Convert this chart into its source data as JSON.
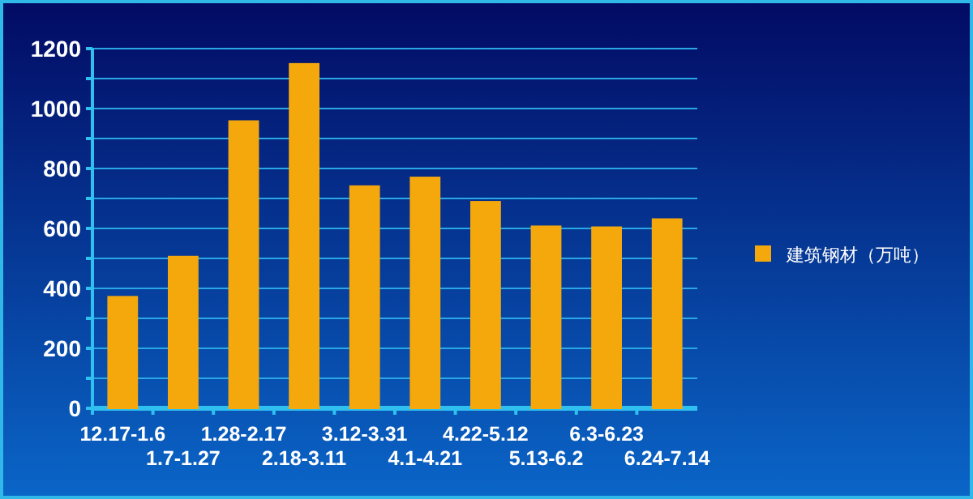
{
  "chart_data": {
    "type": "bar",
    "categories": [
      "12.17-1.6",
      "1.7-1.27",
      "1.28-2.17",
      "2.18-3.11",
      "3.12-3.31",
      "4.1-4.21",
      "4.22-5.12",
      "5.13-6.2",
      "6.3-6.23",
      "6.24-7.14"
    ],
    "series": [
      {
        "name": "建筑钢材（万吨）",
        "color": "#f5a80c",
        "values": [
          372,
          506,
          958,
          1149,
          741,
          770,
          689,
          607,
          604,
          631
        ]
      }
    ],
    "ylim": [
      0,
      1200
    ],
    "yticks": [
      0,
      {
        "value": 100,
        "label": null
      },
      200,
      {
        "value": 300,
        "label": null
      },
      400,
      {
        "value": 500,
        "label": null
      },
      600,
      {
        "value": 700,
        "label": null
      },
      800,
      {
        "value": 900,
        "label": null
      },
      1000,
      {
        "value": 1100,
        "label": null
      },
      1200
    ],
    "grid": "y",
    "legend": "right"
  }
}
